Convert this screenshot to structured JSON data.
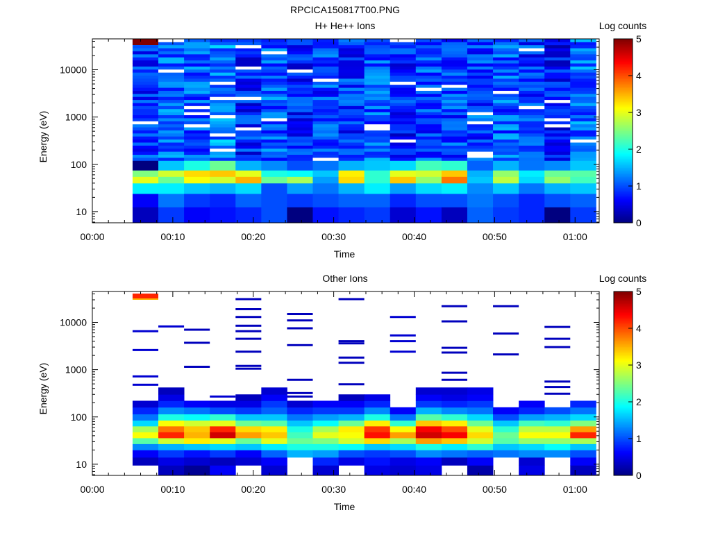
{
  "figure_title": "RPCICA150817T00.PNG",
  "chart_data": [
    {
      "type": "heatmap",
      "title": "H+ He++ Ions",
      "xlabel": "Time",
      "ylabel": "Energy (eV)",
      "colorbar_label": "Log counts",
      "colorbar_ticks": [
        "0",
        "1",
        "2",
        "3",
        "4",
        "5"
      ],
      "color_range": [
        0,
        5
      ],
      "x_ticks": [
        "00:00",
        "00:10",
        "00:20",
        "00:30",
        "00:40",
        "00:50",
        "01:00"
      ],
      "y_ticks": [
        "10",
        "100",
        "1000",
        "10000"
      ],
      "x_range_minutes": [
        0,
        63
      ],
      "y_range_ev": [
        5.8,
        45000
      ],
      "y_scale": "log",
      "time_bins_minutes": [
        5.0,
        8.2,
        11.4,
        14.6,
        17.8,
        21.0,
        24.2,
        27.4,
        30.6,
        33.8,
        37.0,
        40.2,
        43.4,
        46.6,
        49.8,
        53.0,
        56.2,
        59.4,
        62.6
      ],
      "energy_bins_ev": [
        5.8,
        12.5,
        24,
        40,
        55,
        75,
        120,
        45000
      ],
      "values": [
        [
          0.3,
          0.6,
          1.8,
          3.0,
          2.5,
          0.0,
          0.9
        ],
        [
          0.9,
          1.2,
          1.8,
          2.4,
          2.9,
          1.6,
          1.2
        ],
        [
          0.6,
          0.9,
          1.6,
          3.1,
          3.3,
          2.0,
          1.1
        ],
        [
          0.7,
          0.8,
          1.5,
          2.9,
          3.4,
          2.4,
          1.3
        ],
        [
          0.8,
          1.1,
          1.7,
          3.5,
          3.0,
          1.5,
          0.8
        ],
        [
          1.0,
          1.0,
          1.0,
          2.4,
          2.0,
          1.3,
          1.1
        ],
        [
          0.0,
          0.9,
          1.4,
          2.7,
          1.9,
          1.0,
          0.8
        ],
        [
          0.7,
          1.0,
          1.2,
          1.4,
          1.6,
          1.2,
          1.0
        ],
        [
          0.8,
          1.1,
          1.5,
          3.3,
          3.2,
          1.5,
          0.9
        ],
        [
          0.9,
          1.1,
          1.8,
          2.1,
          2.1,
          1.6,
          1.1
        ],
        [
          0.4,
          0.8,
          1.4,
          3.4,
          3.0,
          1.7,
          0.8
        ],
        [
          0.7,
          1.0,
          1.7,
          2.6,
          2.9,
          2.2,
          1.0
        ],
        [
          0.3,
          1.0,
          1.8,
          3.8,
          3.4,
          2.1,
          1.0
        ],
        [
          1.1,
          1.2,
          1.3,
          1.6,
          1.5,
          1.1,
          1.0
        ],
        [
          0.9,
          1.0,
          1.6,
          2.8,
          2.6,
          1.5,
          1.1
        ],
        [
          0.8,
          0.8,
          1.2,
          1.7,
          1.8,
          1.2,
          0.9
        ],
        [
          0.0,
          1.0,
          1.5,
          2.6,
          2.4,
          1.3,
          0.7
        ],
        [
          0.9,
          1.1,
          1.6,
          2.2,
          2.3,
          1.6,
          1.2
        ]
      ]
    },
    {
      "type": "heatmap",
      "title": "Other Ions",
      "xlabel": "Time",
      "ylabel": "Energy (eV)",
      "colorbar_label": "Log counts",
      "colorbar_ticks": [
        "0",
        "1",
        "2",
        "3",
        "4",
        "5"
      ],
      "color_range": [
        0,
        5
      ],
      "x_ticks": [
        "00:00",
        "00:10",
        "00:20",
        "00:30",
        "00:40",
        "00:50",
        "01:00"
      ],
      "y_ticks": [
        "10",
        "100",
        "1000",
        "10000"
      ],
      "x_range_minutes": [
        0,
        63
      ],
      "y_range_ev": [
        5.8,
        45000
      ],
      "y_scale": "log",
      "time_bins_minutes": [
        5.0,
        8.2,
        11.4,
        14.6,
        17.8,
        21.0,
        24.2,
        27.4,
        30.6,
        33.8,
        37.0,
        40.2,
        43.4,
        46.6,
        49.8,
        53.0,
        56.2,
        59.4,
        62.6
      ],
      "energy_bins_ev": [
        5.8,
        9.5,
        14,
        20,
        27,
        36,
        48,
        64,
        85,
        115,
        160,
        220,
        300,
        420
      ],
      "values": [
        [
          null,
          0.3,
          0.6,
          1.3,
          2.3,
          3.1,
          2.7,
          1.7,
          1.2,
          0.8,
          0.4,
          null,
          null
        ],
        [
          0.3,
          0.5,
          0.9,
          1.5,
          2.9,
          4.2,
          3.8,
          3.1,
          2.0,
          1.3,
          0.8,
          0.5,
          0.3
        ],
        [
          0.1,
          0.4,
          0.7,
          1.6,
          3.2,
          3.5,
          3.4,
          2.9,
          1.9,
          1.2,
          0.6,
          null,
          null
        ],
        [
          0.6,
          0.3,
          0.9,
          1.7,
          3.0,
          4.6,
          4.2,
          3.0,
          2.1,
          1.0,
          0.5,
          null,
          null
        ],
        [
          null,
          0.4,
          0.6,
          1.6,
          2.4,
          3.6,
          3.3,
          2.4,
          1.6,
          0.9,
          0.5,
          0.3,
          null
        ],
        [
          0.4,
          0.6,
          1.1,
          1.8,
          3.0,
          3.4,
          3.2,
          2.3,
          1.6,
          1.1,
          0.9,
          0.6,
          0.4
        ],
        [
          null,
          null,
          1.5,
          2.0,
          2.4,
          2.2,
          2.0,
          1.6,
          1.2,
          0.8,
          0.4,
          null,
          null
        ],
        [
          0.4,
          0.8,
          1.4,
          2.0,
          2.5,
          3.0,
          2.7,
          1.9,
          1.4,
          0.9,
          0.6,
          null,
          null
        ],
        [
          null,
          0.5,
          1.0,
          1.9,
          2.9,
          3.1,
          3.2,
          2.4,
          1.5,
          0.9,
          0.6,
          0.3,
          null
        ],
        [
          0.5,
          0.7,
          0.9,
          1.6,
          3.3,
          4.3,
          4.1,
          3.2,
          2.0,
          1.3,
          0.8,
          0.5,
          null
        ],
        [
          0.4,
          0.5,
          1.0,
          1.7,
          2.7,
          3.6,
          3.1,
          2.1,
          1.2,
          0.6,
          null,
          null,
          null
        ],
        [
          0.5,
          0.6,
          1.3,
          2.0,
          3.6,
          4.6,
          4.4,
          3.4,
          2.3,
          1.5,
          0.9,
          0.6,
          0.4
        ],
        [
          null,
          0.3,
          1.2,
          1.8,
          3.4,
          4.4,
          4.0,
          3.2,
          2.1,
          1.3,
          0.8,
          0.5,
          0.4
        ],
        [
          0.2,
          0.6,
          1.1,
          2.1,
          2.9,
          3.3,
          3.0,
          2.4,
          1.7,
          1.2,
          0.9,
          0.6,
          0.5
        ],
        [
          null,
          null,
          1.2,
          1.6,
          2.3,
          2.4,
          2.1,
          1.6,
          1.0,
          0.6,
          null,
          null,
          null
        ],
        [
          0.5,
          0.4,
          1.3,
          1.7,
          2.6,
          3.1,
          2.8,
          2.2,
          1.4,
          0.8,
          0.6,
          null,
          null
        ],
        [
          null,
          null,
          1.3,
          1.9,
          2.6,
          3.1,
          2.8,
          2.1,
          1.5,
          1.0,
          null,
          null,
          null
        ],
        [
          0.3,
          0.6,
          1.0,
          1.6,
          2.7,
          4.2,
          3.6,
          2.5,
          1.7,
          1.2,
          0.8,
          null,
          null
        ]
      ],
      "lines_top_bin": [
        4.2,
        null,
        null,
        null,
        null,
        null,
        null,
        null,
        null,
        null,
        null,
        null,
        null,
        null,
        null,
        null,
        null,
        null
      ],
      "sparse_lines": [
        {
          "energies": [
            6500,
            2600,
            720,
            480
          ],
          "value": 0.4
        },
        {
          "energies": [
            8200
          ],
          "value": 0.4
        },
        {
          "energies": [
            7000,
            3700,
            1150
          ],
          "value": 0.3
        },
        {
          "energies": [
            270
          ],
          "value": 0.4
        },
        {
          "energies": [
            31000,
            19000,
            13000,
            8500,
            6500,
            4500,
            2400,
            1200,
            1050
          ],
          "value": 0.3
        },
        {
          "energies": [],
          "value": 0.3
        },
        {
          "energies": [
            15000,
            11000,
            7500,
            3300,
            610,
            320,
            270
          ],
          "value": 0.3
        },
        {
          "energies": [],
          "value": 0.3
        },
        {
          "energies": [
            31000,
            4000,
            3600,
            1800,
            1400,
            490
          ],
          "value": 0.3
        },
        {
          "energies": [],
          "value": 0.3
        },
        {
          "energies": [
            13000,
            5300,
            4000,
            2400
          ],
          "value": 0.4
        },
        {
          "energies": [],
          "value": 0.3
        },
        {
          "energies": [
            22000,
            10500,
            2900,
            2300,
            860,
            610
          ],
          "value": 0.3
        },
        {
          "energies": [],
          "value": 0.3
        },
        {
          "energies": [
            22000,
            5800,
            2100
          ],
          "value": 0.3
        },
        {
          "energies": [],
          "value": 0.3
        },
        {
          "energies": [
            8000,
            4500,
            3000,
            560,
            430,
            310
          ],
          "value": 0.3
        },
        {
          "energies": [],
          "value": 0.3
        }
      ]
    }
  ]
}
